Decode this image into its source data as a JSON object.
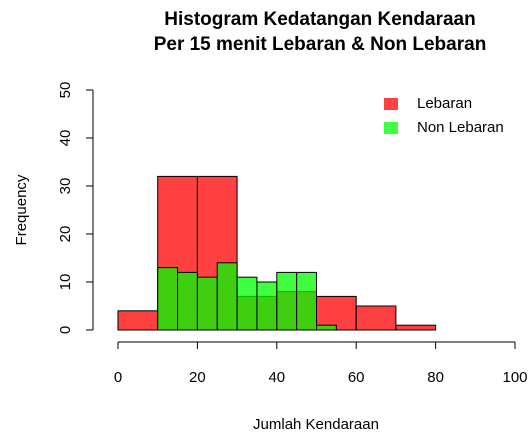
{
  "chart_data": {
    "type": "histogram",
    "title": [
      "Histogram Kedatangan Kendaraan",
      "Per 15 menit Lebaran & Non Lebaran"
    ],
    "x_label": "Jumlah Kendaraan",
    "y_label": "Frequency",
    "series": [
      {
        "name": "Lebaran",
        "color": "rgba(255,0,0,0.75)",
        "bins": [
          0,
          10,
          20,
          30,
          40,
          50,
          60,
          70,
          80
        ],
        "values": [
          4,
          32,
          32,
          7,
          8,
          7,
          5,
          1
        ]
      },
      {
        "name": "Non Lebaran",
        "color": "rgba(0,255,0,0.75)",
        "bins": [
          10,
          15,
          20,
          25,
          30,
          35,
          40,
          45,
          50,
          55
        ],
        "values": [
          13,
          12,
          11,
          14,
          11,
          10,
          12,
          12,
          1
        ]
      }
    ],
    "xlim": [
      0,
      100
    ],
    "xticks": [
      0,
      20,
      40,
      60,
      80,
      100
    ],
    "ylim": [
      0,
      50
    ],
    "yticks": [
      0,
      10,
      20,
      30,
      40,
      50
    ],
    "legend": "topright"
  }
}
